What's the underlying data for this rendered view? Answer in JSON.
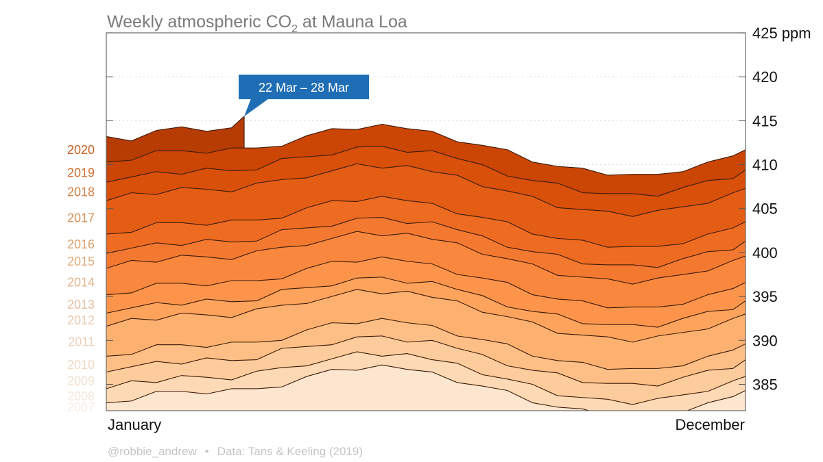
{
  "chart_data": {
    "type": "area",
    "title": "Weekly atmospheric CO",
    "title_subscript": "2",
    "title_suffix": " at Mauna Loa",
    "x_start_label": "January",
    "x_end_label": "December",
    "x_unit": "week of year",
    "ylim": [
      382,
      425
    ],
    "yticks": [
      385,
      390,
      395,
      400,
      405,
      410,
      415,
      420,
      425
    ],
    "ytick_labels": [
      "385",
      "390",
      "395",
      "400",
      "405",
      "410",
      "415",
      "420",
      "425 ppm"
    ],
    "y_axis_side": "right",
    "grid": "dotted horizontal",
    "annotation": {
      "text": "22 Mar – 28 Mar",
      "year": "2020",
      "week": 12,
      "value": 415.5,
      "color": "#1f6eb5"
    },
    "footer": {
      "author": "@robbie_andrew",
      "separator": "•",
      "source": "Data: Tans & Keeling (2019)"
    },
    "weeks": [
      1,
      3,
      5,
      7,
      9,
      11,
      13,
      15,
      17,
      19,
      21,
      23,
      25,
      27,
      29,
      31,
      33,
      35,
      37,
      39,
      41,
      43,
      45,
      47,
      49,
      51,
      52
    ],
    "series": [
      {
        "name": "2007",
        "color": "#fde6cf",
        "label_color": "#f8ece2",
        "values": [
          382.9,
          383.1,
          384.2,
          384.2,
          383.9,
          384.5,
          384.5,
          384.7,
          385.9,
          386.7,
          386.6,
          387.2,
          386.7,
          386.4,
          385.2,
          384.8,
          384.3,
          382.9,
          382.4,
          382.2,
          381.4,
          381.5,
          381.5,
          381.8,
          382.9,
          383.6,
          384.3
        ]
      },
      {
        "name": "2008",
        "color": "#fdd9b5",
        "label_color": "#f5e6d8",
        "values": [
          384.5,
          385.4,
          385.2,
          386.0,
          385.8,
          385.5,
          386.5,
          386.9,
          387.1,
          387.9,
          388.7,
          388.2,
          388.5,
          387.8,
          387.4,
          386.1,
          385.6,
          385.0,
          383.7,
          383.5,
          383.3,
          382.7,
          383.4,
          383.8,
          384.2,
          385.4,
          385.9
        ]
      },
      {
        "name": "2009",
        "color": "#fdcc9c",
        "label_color": "#f2e0cf",
        "values": [
          386.4,
          387.0,
          387.6,
          387.3,
          388.0,
          387.7,
          387.8,
          389.1,
          389.3,
          389.5,
          390.4,
          390.5,
          389.8,
          390.0,
          389.1,
          388.4,
          387.1,
          386.6,
          386.3,
          385.2,
          385.1,
          385.1,
          384.8,
          385.8,
          386.6,
          386.8,
          387.8
        ]
      },
      {
        "name": "2010",
        "color": "#fdbf85",
        "label_color": "#efd9c4",
        "values": [
          388.2,
          388.4,
          389.5,
          389.5,
          389.2,
          389.8,
          389.8,
          390.0,
          391.2,
          392.0,
          391.9,
          392.5,
          392.0,
          391.7,
          390.5,
          390.1,
          389.6,
          388.2,
          387.7,
          387.5,
          386.7,
          386.8,
          386.8,
          387.1,
          388.2,
          388.9,
          389.6
        ]
      },
      {
        "name": "2011",
        "color": "#fdb170",
        "label_color": "#ecd1b8",
        "values": [
          391.6,
          392.5,
          392.3,
          393.1,
          392.9,
          392.6,
          393.6,
          394.0,
          394.2,
          395.0,
          395.8,
          395.3,
          395.6,
          394.9,
          394.5,
          393.2,
          392.7,
          392.1,
          390.8,
          390.6,
          390.4,
          389.8,
          390.5,
          390.9,
          391.3,
          392.5,
          393.0
        ]
      },
      {
        "name": "2012",
        "color": "#fda35c",
        "label_color": "#e9c9ab",
        "values": [
          393.1,
          393.7,
          394.3,
          394.0,
          394.7,
          394.4,
          394.5,
          395.8,
          396.0,
          396.2,
          397.1,
          397.2,
          396.5,
          396.7,
          395.8,
          395.1,
          393.8,
          393.3,
          393.0,
          391.9,
          391.8,
          391.8,
          391.5,
          392.5,
          393.3,
          393.5,
          394.5
        ]
      },
      {
        "name": "2013",
        "color": "#fc954b",
        "label_color": "#e6c09d",
        "values": [
          395.2,
          395.4,
          396.5,
          396.5,
          396.2,
          396.8,
          396.8,
          397.0,
          398.2,
          399.0,
          398.9,
          399.5,
          399.0,
          398.7,
          397.5,
          397.1,
          396.6,
          395.2,
          394.7,
          394.5,
          393.7,
          393.8,
          393.8,
          394.1,
          395.2,
          395.9,
          396.6
        ]
      },
      {
        "name": "2014",
        "color": "#f9873d",
        "label_color": "#e3b58c",
        "values": [
          398.2,
          399.1,
          398.9,
          399.7,
          399.5,
          399.2,
          400.2,
          400.6,
          400.8,
          401.6,
          402.4,
          401.9,
          402.2,
          401.5,
          401.1,
          399.8,
          399.3,
          398.7,
          397.4,
          397.2,
          397.0,
          396.4,
          397.1,
          397.5,
          397.9,
          399.1,
          399.6
        ]
      },
      {
        "name": "2015",
        "color": "#f47930",
        "label_color": "#e0aa7b",
        "values": [
          399.9,
          400.5,
          401.1,
          400.8,
          401.5,
          401.2,
          401.3,
          402.6,
          402.8,
          403.0,
          403.9,
          404.0,
          403.3,
          403.5,
          402.6,
          401.9,
          400.6,
          400.1,
          399.8,
          398.7,
          398.6,
          398.6,
          398.3,
          399.3,
          400.1,
          400.3,
          401.3
        ]
      },
      {
        "name": "2016",
        "color": "#ee6b22",
        "label_color": "#dc9e69",
        "values": [
          402.1,
          402.3,
          403.4,
          403.4,
          403.1,
          403.7,
          403.7,
          403.9,
          405.1,
          405.9,
          405.8,
          406.4,
          405.9,
          405.6,
          404.4,
          404.0,
          403.5,
          402.1,
          401.6,
          401.4,
          400.6,
          400.7,
          400.7,
          401.0,
          402.1,
          402.8,
          403.5
        ]
      },
      {
        "name": "2017",
        "color": "#e45d15",
        "label_color": "#d98f55",
        "values": [
          405.9,
          406.8,
          406.6,
          407.4,
          407.2,
          406.9,
          407.9,
          408.3,
          408.5,
          409.3,
          410.1,
          409.6,
          409.9,
          409.2,
          408.8,
          407.5,
          407.0,
          406.4,
          405.1,
          404.9,
          404.7,
          404.1,
          404.8,
          405.2,
          405.6,
          406.8,
          407.3
        ]
      },
      {
        "name": "2018",
        "color": "#d9500b",
        "label_color": "#d37e41",
        "values": [
          408.0,
          408.6,
          409.2,
          408.9,
          409.6,
          409.3,
          409.4,
          410.7,
          410.9,
          411.1,
          412.0,
          412.1,
          411.4,
          411.6,
          410.7,
          410.0,
          408.7,
          408.2,
          407.9,
          406.8,
          406.7,
          406.7,
          406.4,
          407.4,
          408.2,
          408.4,
          409.4
        ]
      },
      {
        "name": "2019",
        "color": "#cb4505",
        "label_color": "#cf6e30",
        "values": [
          410.3,
          410.5,
          411.6,
          411.6,
          411.3,
          411.9,
          411.9,
          412.1,
          413.3,
          414.1,
          414.0,
          414.6,
          414.1,
          413.8,
          412.6,
          412.2,
          411.7,
          410.3,
          409.8,
          409.6,
          408.8,
          408.9,
          408.9,
          409.2,
          410.3,
          411.0,
          411.7
        ]
      },
      {
        "name": "2020",
        "color": "#b73c03",
        "label_color": "#c95d1c",
        "weeks": [
          1,
          3,
          5,
          7,
          9,
          11,
          12
        ],
        "values": [
          413.2,
          412.7,
          413.9,
          414.3,
          413.8,
          414.2,
          415.5
        ]
      }
    ]
  }
}
